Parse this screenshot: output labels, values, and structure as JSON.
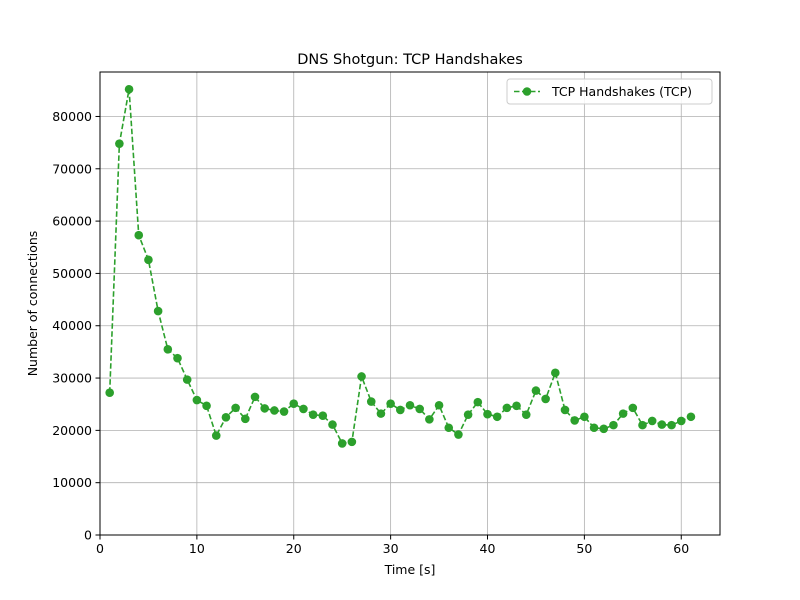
{
  "chart_data": {
    "type": "line",
    "title": "DNS Shotgun: TCP Handshakes",
    "xlabel": "Time [s]",
    "ylabel": "Number of connections",
    "xlim": [
      0,
      64
    ],
    "ylim": [
      0,
      88500
    ],
    "xticks": [
      0,
      10,
      20,
      30,
      40,
      50,
      60
    ],
    "yticks": [
      0,
      10000,
      20000,
      30000,
      40000,
      50000,
      60000,
      70000,
      80000
    ],
    "grid": true,
    "legend_position": "top-right",
    "series": [
      {
        "name": "TCP Handshakes (TCP)",
        "color": "#2ca02c",
        "line_style": "dashed",
        "marker": "circle",
        "x": [
          1,
          2,
          3,
          4,
          5,
          6,
          7,
          8,
          9,
          10,
          11,
          12,
          13,
          14,
          15,
          16,
          17,
          18,
          19,
          20,
          21,
          22,
          23,
          24,
          25,
          26,
          27,
          28,
          29,
          30,
          31,
          32,
          33,
          34,
          35,
          36,
          37,
          38,
          39,
          40,
          41,
          42,
          43,
          44,
          45,
          46,
          47,
          48,
          49,
          50,
          51,
          52,
          53,
          54,
          55,
          56,
          57,
          58,
          59,
          60,
          61
        ],
        "values": [
          27200,
          74800,
          85200,
          57300,
          52600,
          42800,
          35500,
          33800,
          29700,
          25800,
          24700,
          19000,
          22500,
          24300,
          22200,
          26400,
          24200,
          23800,
          23600,
          25100,
          24100,
          23000,
          22800,
          21100,
          17500,
          17800,
          30300,
          25500,
          23200,
          25100,
          23900,
          24800,
          24100,
          22100,
          24800,
          20500,
          19200,
          23000,
          25400,
          23100,
          22600,
          24300,
          24700,
          23000,
          27600,
          26000,
          31000,
          23900,
          21900,
          22600,
          20500,
          20300,
          21000,
          23200,
          24300,
          21000,
          21800,
          21100,
          21000,
          21800,
          22600
        ]
      }
    ]
  }
}
